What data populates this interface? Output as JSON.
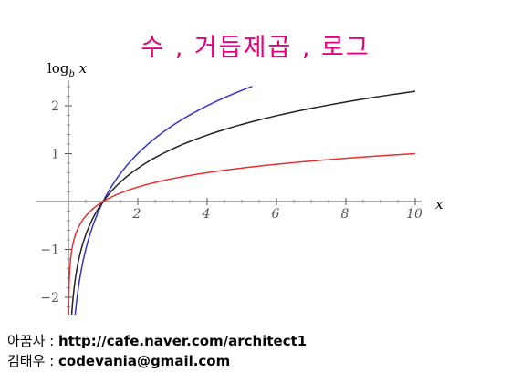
{
  "title": "수 , 거듭제곱 , 로그",
  "footer": {
    "line1_label": "아꿈사 : ",
    "line1_value": "http://cafe.naver.com/architect1",
    "line2_label": "김태우 : ",
    "line2_value": "codevania@gmail.com"
  },
  "chart_data": {
    "type": "line",
    "ylabel_base": "log",
    "ylabel_sub": "b",
    "ylabel_var": "x",
    "xlabel": "x",
    "xlim": [
      0,
      10
    ],
    "ylim": [
      -2.4,
      2.5
    ],
    "xticks": [
      2,
      4,
      6,
      8,
      10
    ],
    "yticks": [
      -2,
      -1,
      1,
      2
    ],
    "xtick_labels": [
      "2",
      "4",
      "6",
      "8",
      "10"
    ],
    "ytick_labels": [
      "−2",
      "−1",
      "1",
      "2"
    ],
    "grid": false,
    "series": [
      {
        "color": "#3333cc",
        "base": 2,
        "x_min": 0.18,
        "x_max": 5.3
      },
      {
        "color": "#222222",
        "base": 2.718281828,
        "x_min": 0.09,
        "x_max": 10
      },
      {
        "color": "#e83030",
        "base": 10,
        "x_min": 0.004,
        "x_max": 10
      }
    ]
  }
}
